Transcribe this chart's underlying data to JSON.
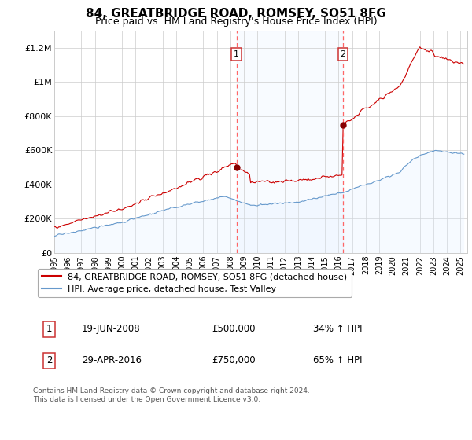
{
  "title": "84, GREATBRIDGE ROAD, ROMSEY, SO51 8FG",
  "subtitle": "Price paid vs. HM Land Registry’s House Price Index (HPI)",
  "ylabel_ticks": [
    "£0",
    "£200K",
    "£400K",
    "£600K",
    "£800K",
    "£1M",
    "£1.2M"
  ],
  "ytick_values": [
    0,
    200000,
    400000,
    600000,
    800000,
    1000000,
    1200000
  ],
  "ylim": [
    0,
    1300000
  ],
  "xlim_start": 1995.0,
  "xlim_end": 2025.5,
  "sale1_date": 2008.46,
  "sale1_price": 500000,
  "sale2_date": 2016.33,
  "sale2_price": 750000,
  "line_color_property": "#cc0000",
  "line_color_hpi": "#6699cc",
  "fill_color_hpi": "#ddeeff",
  "dashed_line_color": "#ff6666",
  "legend_label_property": "84, GREATBRIDGE ROAD, ROMSEY, SO51 8FG (detached house)",
  "legend_label_hpi": "HPI: Average price, detached house, Test Valley",
  "copyright_text": "Contains HM Land Registry data © Crown copyright and database right 2024.\nThis data is licensed under the Open Government Licence v3.0.",
  "background_color": "#ffffff",
  "grid_color": "#cccccc",
  "title_fontsize": 11,
  "subtitle_fontsize": 9,
  "tick_fontsize": 8,
  "legend_fontsize": 8,
  "sale1_label": "1",
  "sale2_label": "2",
  "sale1_date_str": "19-JUN-2008",
  "sale1_price_str": "£500,000",
  "sale1_hpi_str": "34% ↑ HPI",
  "sale2_date_str": "29-APR-2016",
  "sale2_price_str": "£750,000",
  "sale2_hpi_str": "65% ↑ HPI"
}
